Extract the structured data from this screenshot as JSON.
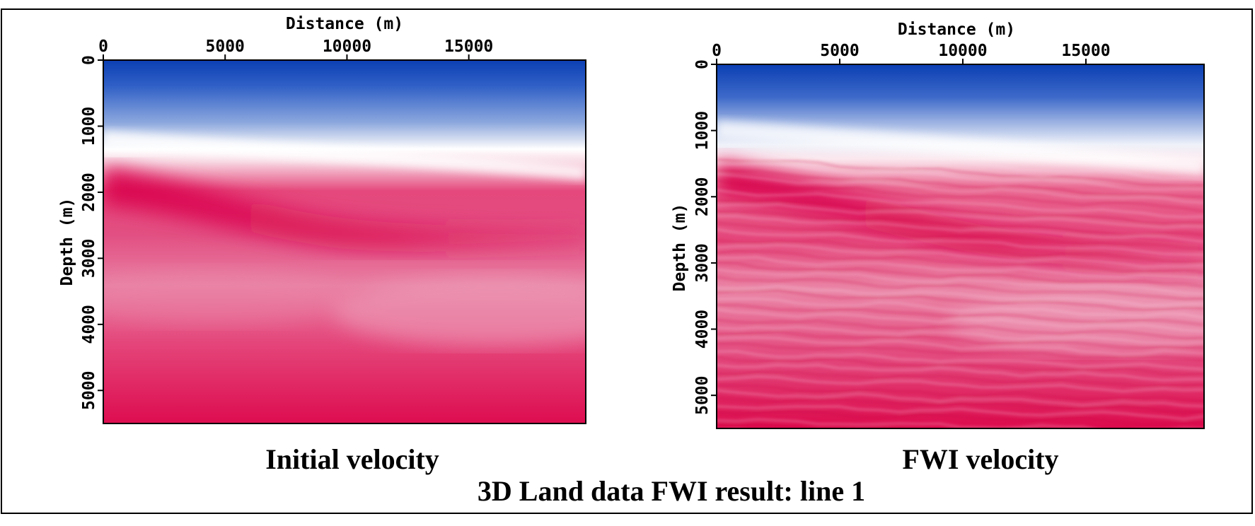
{
  "figure": {
    "title": "3D Land data FWI result: line 1"
  },
  "chart_data": [
    {
      "type": "heatmap",
      "caption": "Initial velocity",
      "xlabel": "Distance (m)",
      "ylabel": "Depth (m)",
      "x_ticks": [
        "0",
        "5000",
        "10000",
        "15000"
      ],
      "y_ticks": [
        "0",
        "1000",
        "2000",
        "3000",
        "4000",
        "5000"
      ],
      "xlim": [
        0,
        19800
      ],
      "ylim": [
        0,
        5500
      ],
      "x_axis_position": "top",
      "colormap": [
        "#0a3fb0",
        "#ffffff",
        "#e0004f"
      ],
      "structure": "smooth",
      "grid": false
    },
    {
      "type": "heatmap",
      "caption": "FWI velocity",
      "xlabel": "Distance (m)",
      "ylabel": "Depth (m)",
      "x_ticks": [
        "0",
        "5000",
        "10000",
        "15000"
      ],
      "y_ticks": [
        "0",
        "1000",
        "2000",
        "3000",
        "4000",
        "5000"
      ],
      "xlim": [
        0,
        19800
      ],
      "ylim": [
        0,
        5500
      ],
      "x_axis_position": "top",
      "colormap": [
        "#0a3fb0",
        "#ffffff",
        "#e0004f"
      ],
      "structure": "layered detail",
      "grid": false
    }
  ]
}
